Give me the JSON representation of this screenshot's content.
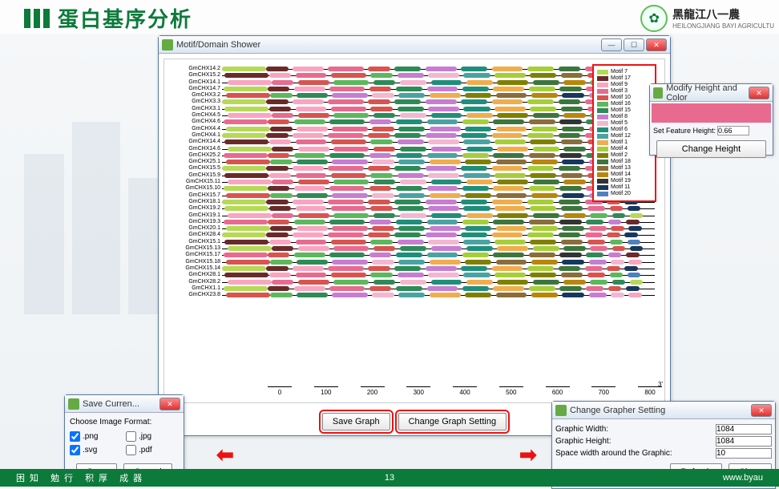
{
  "header": {
    "title": "蛋白基序分析",
    "uni_cn": "黑龍江八一農",
    "uni_en": "HEILONGJIANG BAYI AGRICULTU"
  },
  "mainWindow": {
    "title": "Motif/Domain Shower",
    "saveGraphBtn": "Save Graph",
    "changeSettingBtn": "Change Graph Setting",
    "axisEnd": "3'"
  },
  "motifs": [
    {
      "name": "Motif 7",
      "color": "#b6d957"
    },
    {
      "name": "Motif 17",
      "color": "#6b2a2a"
    },
    {
      "name": "Motif 9",
      "color": "#f9a5c0"
    },
    {
      "name": "Motif 3",
      "color": "#e86b8f"
    },
    {
      "name": "Motif 10",
      "color": "#d9534f"
    },
    {
      "name": "Motif 16",
      "color": "#5cb85c"
    },
    {
      "name": "Motif 15",
      "color": "#2e8b57"
    },
    {
      "name": "Motif 8",
      "color": "#c77dd1"
    },
    {
      "name": "Motif 5",
      "color": "#f4b6d0"
    },
    {
      "name": "Motif 6",
      "color": "#1f8f7b"
    },
    {
      "name": "Motif 12",
      "color": "#4aa3a3"
    },
    {
      "name": "Motif 1",
      "color": "#f0ad4e"
    },
    {
      "name": "Motif 4",
      "color": "#a6ce39"
    },
    {
      "name": "Motif 2",
      "color": "#808000"
    },
    {
      "name": "Motif 18",
      "color": "#3c763d"
    },
    {
      "name": "Motif 13",
      "color": "#8a6d3b"
    },
    {
      "name": "Motif 14",
      "color": "#b8860b"
    },
    {
      "name": "Motif 19",
      "color": "#333333"
    },
    {
      "name": "Motif 11",
      "color": "#17375e"
    },
    {
      "name": "Motif 20",
      "color": "#4f81bd"
    }
  ],
  "genes": [
    "GmCHX14.2",
    "GmCHX15.2",
    "GmCHX14.1",
    "GmCHX14.7",
    "GmCHX3.2",
    "GmCHX3.3",
    "GmCHX3.1",
    "GmCHX4.5",
    "GmCHX4.6",
    "GmCHX4.4",
    "GmCHX4.1",
    "GmCHX14.4",
    "GmCHX14.6",
    "GmCHX25.2",
    "GmCHX25.1",
    "GmCHX15.5",
    "GmCHX15.9",
    "GmCHX15.11",
    "GmCHX15.10",
    "GmCHX15.7",
    "GmCHX18.1",
    "GmCHX19.2",
    "GmCHX19.1",
    "GmCHX19.3",
    "GmCHX20.1",
    "GmCHX28.4",
    "GmCHX15.1",
    "GmCHX15.13",
    "GmCHX15.17",
    "GmCHX15.18",
    "GmCHX15.14",
    "GmCHX28.1",
    "GmCHX28.2",
    "GmCHX1.1",
    "GmCHX23.8"
  ],
  "xticks": [
    0,
    100,
    200,
    300,
    400,
    500,
    600,
    700,
    800
  ],
  "segTemplate": [
    {
      "c": 0,
      "l": 0,
      "w": 10
    },
    {
      "c": 1,
      "l": 10,
      "w": 5
    },
    {
      "c": 2,
      "l": 16,
      "w": 7
    },
    {
      "c": 3,
      "l": 24,
      "w": 8
    },
    {
      "c": 4,
      "l": 33,
      "w": 5
    },
    {
      "c": 6,
      "l": 39,
      "w": 6
    },
    {
      "c": 7,
      "l": 46,
      "w": 7
    },
    {
      "c": 9,
      "l": 54,
      "w": 6
    },
    {
      "c": 11,
      "l": 61,
      "w": 7
    },
    {
      "c": 12,
      "l": 69,
      "w": 6
    },
    {
      "c": 14,
      "l": 76,
      "w": 5
    },
    {
      "c": 3,
      "l": 82,
      "w": 4
    },
    {
      "c": 4,
      "l": 87,
      "w": 3
    },
    {
      "c": 18,
      "l": 91,
      "w": 3
    }
  ],
  "saveDialog": {
    "title": "Save Curren...",
    "chooseLabel": "Choose Image Format:",
    "formats": [
      {
        "ext": ".png",
        "checked": true
      },
      {
        "ext": ".jpg",
        "checked": false
      },
      {
        "ext": ".svg",
        "checked": true
      },
      {
        "ext": ".pdf",
        "checked": false
      }
    ],
    "saveBtn": "Save",
    "cancelBtn": "Cancel"
  },
  "modifyDialog": {
    "title": "Modify Height and Color",
    "heightLabel": "Set Feature Height:",
    "heightValue": "0.66",
    "changeBtn": "Change Height",
    "swatchColor": "#e86b8f"
  },
  "settingDialog": {
    "title": "Change Grapher Setting",
    "widthLabel": "Graphic Width:",
    "widthValue": "1084",
    "heightLabel": "Graphic Height:",
    "heightValue": "1084",
    "spaceLabel": "Space width around the Graphic:",
    "spaceValue": "10",
    "refreshBtn": "Refresh",
    "closeBtn": "Close"
  },
  "footer": {
    "slogan": "困知 勉行 积厚 成器",
    "page": "13",
    "url": "www.byau"
  }
}
